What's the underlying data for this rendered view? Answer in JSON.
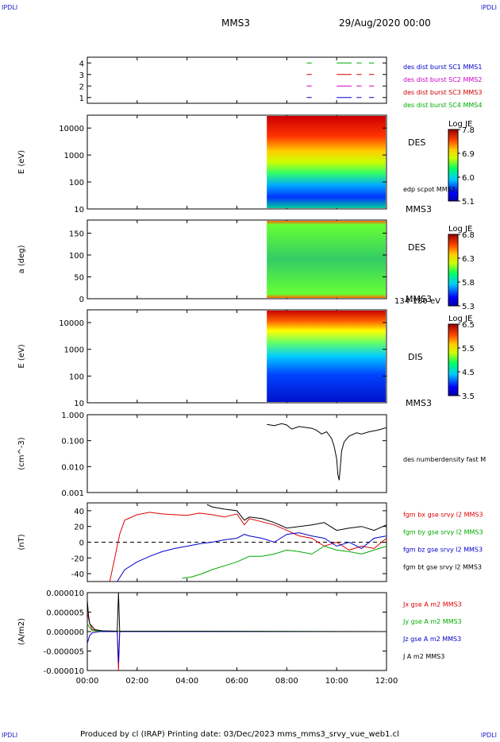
{
  "header": {
    "corner_label": "IPDLI",
    "spacecraft": "MMS3",
    "date": "29/Aug/2020 00:00"
  },
  "footer": {
    "text": "Produced by cl (IRAP)   Printing date: 03/Dec/2023   mms_mms3_srvy_vue_web1.cl"
  },
  "time_axis": {
    "ticks": [
      "00:00",
      "02:00",
      "04:00",
      "06:00",
      "08:00",
      "10:00",
      "12:00"
    ],
    "range_hours": [
      0,
      12
    ],
    "data_start_hours": 7.2
  },
  "chart_data": [
    {
      "type": "line",
      "name": "burst-availability",
      "yticks": [
        "1",
        "2",
        "3",
        "4"
      ],
      "ylim": [
        0.5,
        4.5
      ],
      "legend": [
        {
          "label": "des dist burst SC1 MMS1",
          "color": "#0000cc"
        },
        {
          "label": "des dist burst SC2 MMS2",
          "color": "#cc00cc"
        },
        {
          "label": "des dist burst SC3 MMS3",
          "color": "#cc0000"
        },
        {
          "label": "des dist burst SC4 MMS4",
          "color": "#00aa00"
        }
      ],
      "tracks": [
        {
          "level": 4,
          "color": "#00aa00",
          "segments": [
            [
              8.8,
              9.0
            ],
            [
              10.0,
              10.6
            ],
            [
              10.8,
              11.0
            ],
            [
              11.3,
              11.5
            ]
          ]
        },
        {
          "level": 3,
          "color": "#cc0000",
          "segments": [
            [
              8.8,
              9.0
            ],
            [
              10.0,
              10.6
            ],
            [
              10.8,
              11.0
            ],
            [
              11.3,
              11.5
            ]
          ]
        },
        {
          "level": 2,
          "color": "#cc00cc",
          "segments": [
            [
              8.8,
              9.0
            ],
            [
              10.0,
              10.6
            ],
            [
              10.8,
              11.0
            ],
            [
              11.3,
              11.5
            ]
          ]
        },
        {
          "level": 1,
          "color": "#0000cc",
          "segments": [
            [
              8.8,
              9.0
            ],
            [
              10.0,
              10.6
            ],
            [
              10.8,
              11.0
            ],
            [
              11.3,
              11.5
            ]
          ]
        }
      ]
    },
    {
      "type": "heatmap",
      "name": "des-energy-spectrogram",
      "ylabel": "E (eV)",
      "yscale": "log",
      "ylim": [
        10,
        30000
      ],
      "yticks": [
        "10",
        "100",
        "1000",
        "10000"
      ],
      "species": "DES",
      "spacecraft": "MMS3",
      "annotation": "edp scpot MMS3",
      "colorbar": {
        "label": "Log JE",
        "ticks": [
          "5.1",
          "6.0",
          "6.9",
          "7.8"
        ],
        "min": 5.1,
        "max": 7.8
      }
    },
    {
      "type": "heatmap",
      "name": "des-pitch-angle",
      "ylabel": "a (deg)",
      "ylim": [
        0,
        180
      ],
      "yticks": [
        "0",
        "50",
        "100",
        "150"
      ],
      "species": "DES",
      "spacecraft": "MMS3",
      "energy_range": "134-180 eV",
      "colorbar": {
        "label": "Log JE",
        "ticks": [
          "5.3",
          "5.8",
          "6.3",
          "6.8"
        ],
        "min": 5.3,
        "max": 6.8
      }
    },
    {
      "type": "heatmap",
      "name": "dis-energy-spectrogram",
      "ylabel": "E (eV)",
      "yscale": "log",
      "ylim": [
        10,
        30000
      ],
      "yticks": [
        "10",
        "100",
        "1000",
        "10000"
      ],
      "species": "DIS",
      "spacecraft": "MMS3",
      "colorbar": {
        "label": "Log JE",
        "ticks": [
          "3.5",
          "4.5",
          "5.5",
          "6.5"
        ],
        "min": 3.5,
        "max": 6.5
      }
    },
    {
      "type": "line",
      "name": "density",
      "ylabel": "(cm^-3)",
      "yscale": "log",
      "ylim": [
        0.001,
        1.0
      ],
      "yticks": [
        "0.001",
        "0.010",
        "0.100",
        "1.000"
      ],
      "series": [
        {
          "name": "des numberdensity fast M",
          "color": "#000000",
          "x": [
            7.2,
            7.5,
            7.8,
            8.0,
            8.2,
            8.5,
            8.8,
            9.0,
            9.2,
            9.4,
            9.6,
            9.8,
            9.9,
            10.0,
            10.05,
            10.1,
            10.15,
            10.2,
            10.3,
            10.5,
            10.8,
            11.0,
            11.3,
            11.6,
            11.8,
            12.0
          ],
          "y": [
            0.42,
            0.38,
            0.45,
            0.4,
            0.28,
            0.35,
            0.32,
            0.3,
            0.25,
            0.18,
            0.22,
            0.12,
            0.06,
            0.02,
            0.005,
            0.003,
            0.01,
            0.04,
            0.09,
            0.15,
            0.2,
            0.18,
            0.22,
            0.25,
            0.28,
            0.32
          ]
        }
      ]
    },
    {
      "type": "line",
      "name": "magnetic-field",
      "ylabel": "(nT)",
      "ylim": [
        -50,
        50
      ],
      "yticks": [
        "-40",
        "-20",
        "0",
        "20",
        "40"
      ],
      "zero_line": true,
      "series": [
        {
          "name": "fgm bx gse srvy l2 MMS3",
          "color": "#dd0000",
          "x": [
            0.9,
            1.1,
            1.3,
            1.5,
            2.0,
            2.5,
            3.0,
            3.5,
            4.0,
            4.5,
            5.0,
            5.5,
            6.0,
            6.3,
            6.5,
            7.0,
            7.5,
            8.0,
            8.5,
            9.0,
            9.5,
            10.0,
            10.5,
            11.0,
            11.5,
            12.0
          ],
          "y": [
            -50,
            -20,
            10,
            28,
            35,
            38,
            36,
            35,
            34,
            37,
            35,
            32,
            36,
            22,
            30,
            26,
            22,
            15,
            8,
            5,
            -5,
            0,
            -10,
            -5,
            -8,
            5
          ]
        },
        {
          "name": "fgm by gse srvy l2 MMS3",
          "color": "#00aa00",
          "x": [
            3.8,
            4.2,
            4.6,
            5.0,
            5.5,
            6.0,
            6.5,
            7.0,
            7.5,
            8.0,
            8.5,
            9.0,
            9.5,
            10.0,
            10.5,
            11.0,
            11.5,
            12.0
          ],
          "y": [
            -46,
            -44,
            -40,
            -35,
            -30,
            -25,
            -18,
            -18,
            -15,
            -10,
            -12,
            -15,
            -5,
            -10,
            -12,
            -15,
            -10,
            -5
          ]
        },
        {
          "name": "fgm bz gse srvy l2 MMS3",
          "color": "#0000cc",
          "x": [
            1.2,
            1.5,
            2.0,
            2.5,
            3.0,
            3.5,
            4.0,
            4.5,
            5.0,
            5.5,
            6.0,
            6.3,
            6.5,
            7.0,
            7.5,
            8.0,
            8.5,
            9.0,
            9.5,
            10.0,
            10.5,
            11.0,
            11.5,
            12.0
          ],
          "y": [
            -50,
            -35,
            -25,
            -18,
            -12,
            -8,
            -5,
            -2,
            0,
            3,
            5,
            10,
            8,
            5,
            0,
            10,
            12,
            8,
            5,
            -5,
            0,
            -8,
            5,
            8
          ]
        },
        {
          "name": "fgm bt gse srvy l2 MMS3",
          "color": "#000000",
          "x": [
            4.8,
            5.0,
            5.5,
            6.0,
            6.3,
            6.5,
            7.0,
            7.5,
            8.0,
            8.5,
            9.0,
            9.5,
            10.0,
            10.5,
            11.0,
            11.5,
            12.0
          ],
          "y": [
            48,
            45,
            42,
            40,
            28,
            32,
            30,
            25,
            18,
            20,
            22,
            25,
            15,
            18,
            20,
            15,
            22
          ]
        }
      ]
    },
    {
      "type": "line",
      "name": "current-density",
      "ylabel": "(A/m2)",
      "ylim": [
        -1e-05,
        1e-05
      ],
      "yticks": [
        "-0.000010",
        "-0.000005",
        "0.000000",
        "0.000005",
        "0.000010"
      ],
      "series": [
        {
          "name": "Jx gse A m2 MMS3",
          "color": "#dd0000",
          "x": [
            0,
            0.1,
            0.2,
            0.5,
            1.2,
            1.25,
            1.3,
            12
          ],
          "y": [
            5e-06,
            2e-06,
            5e-07,
            1e-07,
            0,
            -1e-05,
            0,
            0
          ]
        },
        {
          "name": "Jy gse A m2 MMS3",
          "color": "#00aa00",
          "x": [
            0,
            0.1,
            0.2,
            0.5,
            12
          ],
          "y": [
            2e-06,
            1e-06,
            2e-07,
            1e-07,
            0
          ]
        },
        {
          "name": "Jz gse A m2 MMS3",
          "color": "#0000cc",
          "x": [
            0,
            0.1,
            0.2,
            0.5,
            1.2,
            1.25,
            1.3,
            12
          ],
          "y": [
            -3e-06,
            -1e-06,
            -3e-07,
            0,
            0,
            -8e-06,
            0,
            0
          ]
        },
        {
          "name": "J A m2 MMS3",
          "color": "#000000",
          "x": [
            0,
            0.05,
            0.1,
            0.3,
            0.6,
            1.2,
            1.25,
            1.3,
            12
          ],
          "y": [
            8e-06,
            4e-06,
            2e-06,
            5e-07,
            2e-07,
            1e-07,
            1e-05,
            1e-07,
            0
          ]
        }
      ]
    }
  ]
}
